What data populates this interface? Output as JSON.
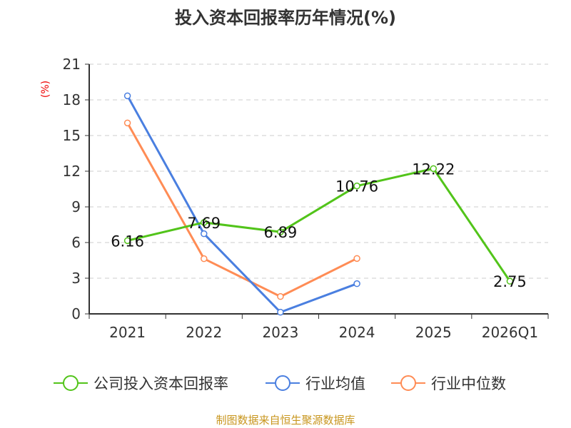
{
  "chart_data": {
    "type": "line",
    "title": "投入资本回报率历年情况(%)",
    "ylabel": "(%)",
    "xlabel": "",
    "categories": [
      "2021",
      "2022",
      "2023",
      "2024",
      "2025",
      "2026Q1"
    ],
    "ylim": [
      0,
      21
    ],
    "yticks": [
      0,
      3,
      6,
      9,
      12,
      15,
      18,
      21
    ],
    "grid": true,
    "legend_position": "bottom",
    "series": [
      {
        "name": "公司投入资本回报率",
        "color": "#52c41a",
        "values": [
          6.16,
          7.69,
          6.89,
          10.76,
          12.22,
          2.75
        ],
        "labels": [
          "6.16",
          "7.69",
          "6.89",
          "10.76",
          "12.22",
          "2.75"
        ]
      },
      {
        "name": "行业均值",
        "color": "#4a7fe0",
        "values": [
          18.34,
          6.74,
          0.14,
          2.54,
          null,
          null
        ]
      },
      {
        "name": "行业中位数",
        "color": "#ff8c55",
        "values": [
          16.06,
          4.64,
          1.46,
          4.66,
          null,
          null
        ]
      }
    ]
  },
  "footer": "制图数据来自恒生聚源数据库"
}
